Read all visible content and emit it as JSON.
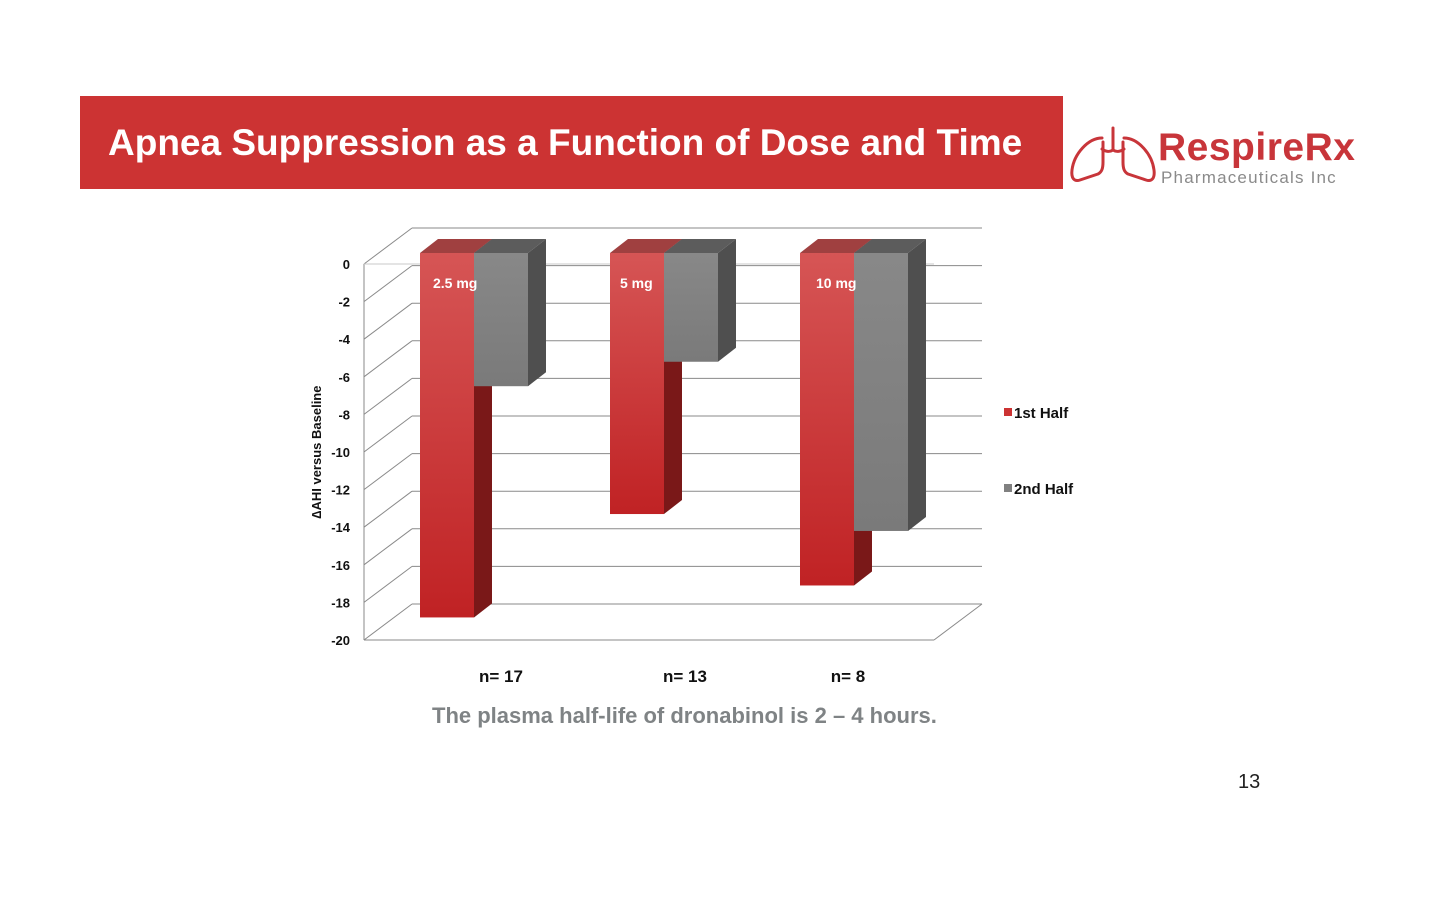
{
  "slide": {
    "title": "Apnea Suppression as a Function of Dose and Time",
    "caption": "The plasma half-life of dronabinol is 2 – 4 hours.",
    "page_number": "13"
  },
  "logo": {
    "name": "RespireRx",
    "subtitle": "Pharmaceuticals Inc",
    "icon": "lungs-icon",
    "color": "#c8353a"
  },
  "colors": {
    "title_bar": "#cc3333",
    "series_1": "#cc3333",
    "series_2": "#808080"
  },
  "chart_data": {
    "type": "bar",
    "style": "3d-clustered-column",
    "categories": [
      "n= 17",
      "n= 13",
      "n= 8"
    ],
    "dose_labels": [
      "2.5 mg",
      "5 mg",
      "10 mg"
    ],
    "series": [
      {
        "name": "1st Half",
        "values": [
          -18.8,
          -13.3,
          -17.1
        ]
      },
      {
        "name": "2nd Half",
        "values": [
          -6.5,
          -5.2,
          -14.2
        ]
      }
    ],
    "ylabel": "∆AHI versus Baseline",
    "ylim": [
      -20,
      0
    ],
    "yticks": [
      0,
      -2,
      -4,
      -6,
      -8,
      -10,
      -12,
      -14,
      -16,
      -18,
      -20
    ],
    "grid": true,
    "legend": "right"
  }
}
